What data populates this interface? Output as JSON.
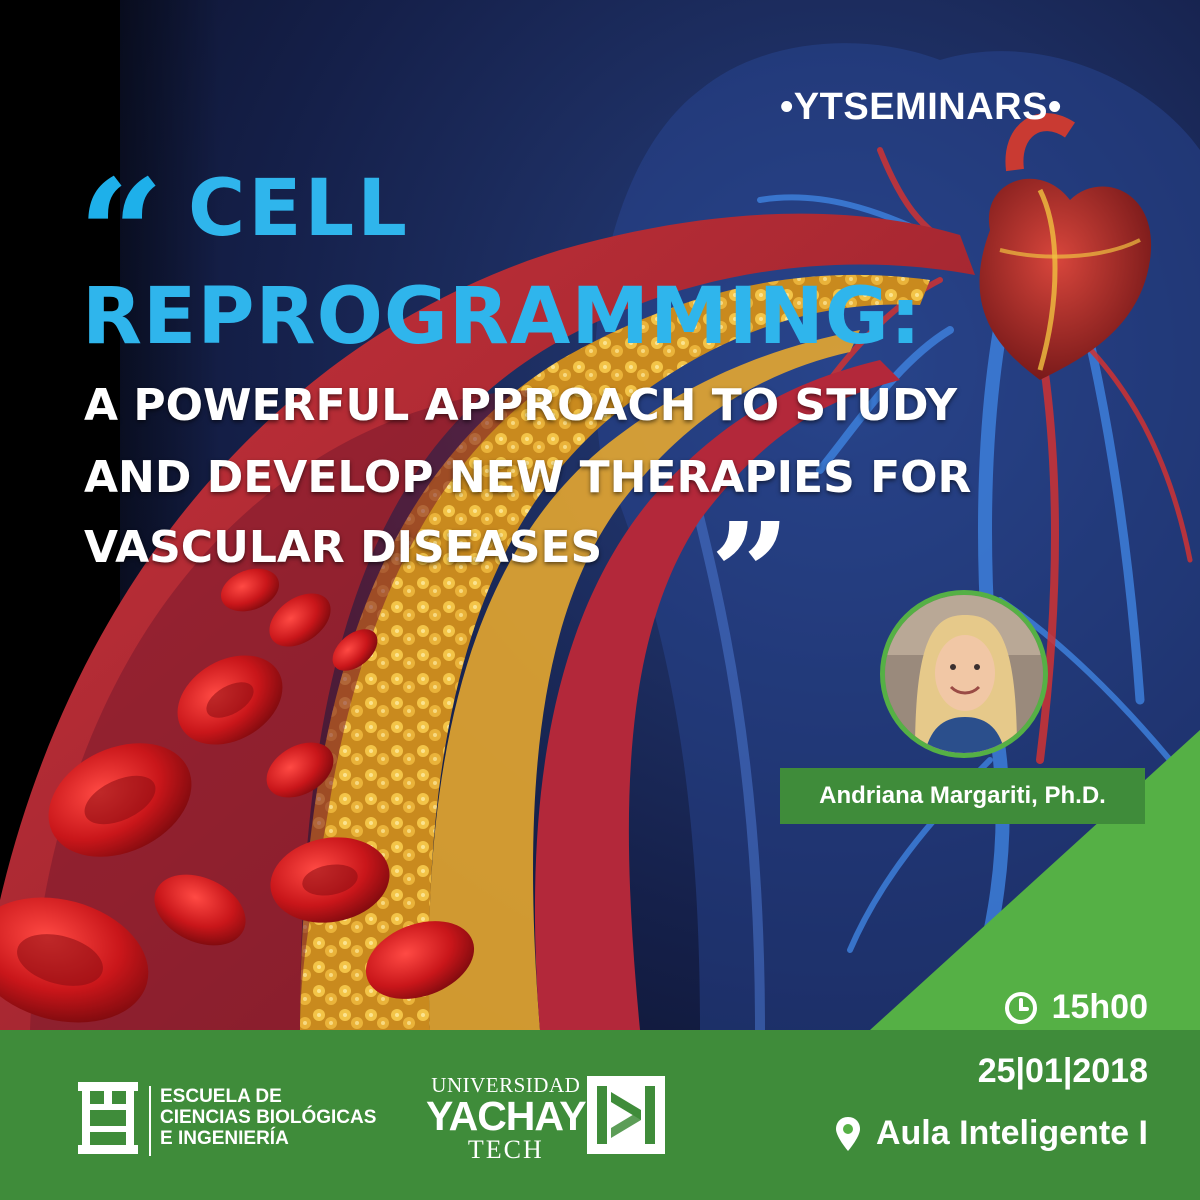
{
  "poster": {
    "series": "•YTSEMINARS•",
    "title_line1": "CELL",
    "title_line2": "REPROGRAMMING:",
    "subtitle_line1": "A POWERFUL APPROACH TO STUDY",
    "subtitle_line2": "AND DEVELOP NEW THERAPIES FOR",
    "subtitle_line3": "VASCULAR DISEASES",
    "open_quote": "“",
    "close_quote": "”"
  },
  "speaker": {
    "name": "Andriana Margariti, Ph.D."
  },
  "event": {
    "time": "15h00",
    "date": "25|01|2018",
    "location": "Aula Inteligente I"
  },
  "institutions": {
    "school_line1": "ESCUELA DE",
    "school_line2": "CIENCIAS BIOLÓGICAS",
    "school_line3": "E INGENIERÍA",
    "university_line1": "UNIVERSIDAD",
    "university_line2": "YACHAY",
    "university_line3": "TECH"
  },
  "colors": {
    "accent_blue": "#2fb5ec",
    "accent_green": "#55b045",
    "footer_green": "#3f8c3a",
    "background_navy": "#0d1530"
  },
  "icons": [
    "clock-icon",
    "location-pin-icon",
    "school-logo-icon",
    "yachay-logo-icon"
  ]
}
